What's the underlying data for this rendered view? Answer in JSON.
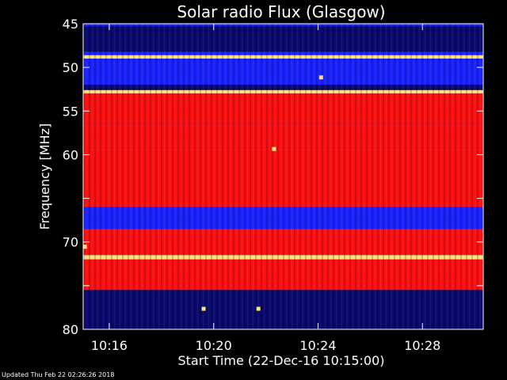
{
  "chart_data": {
    "type": "heatmap",
    "title": "Solar radio Flux (Glasgow)",
    "xlabel": "Start Time (22-Dec-16 10:15:00)",
    "ylabel": "Frequency [MHz]",
    "x_start_minutes": 0,
    "x_end_minutes": 15.33,
    "x_ticks": [
      {
        "label": "10:16",
        "minutes": 1
      },
      {
        "label": "10:20",
        "minutes": 5
      },
      {
        "label": "10:24",
        "minutes": 9
      },
      {
        "label": "10:28",
        "minutes": 13
      }
    ],
    "ylim": [
      45,
      80
    ],
    "y_ticks": [
      45,
      50,
      55,
      60,
      65,
      70,
      75,
      80
    ],
    "y_tick_labels": [
      "45",
      "50",
      "55",
      "60",
      "",
      "70",
      "",
      "80"
    ],
    "colors": {
      "low": "#0a0a6e",
      "mid": "#1a22ff",
      "high": "#ff1010",
      "peak": "#ffe080"
    },
    "bands": [
      {
        "from": 45.0,
        "to": 45.3,
        "level": "mid"
      },
      {
        "from": 45.3,
        "to": 48.2,
        "level": "low"
      },
      {
        "from": 48.2,
        "to": 48.6,
        "level": "mid"
      },
      {
        "from": 48.6,
        "to": 49.0,
        "level": "peak"
      },
      {
        "from": 49.0,
        "to": 52.0,
        "level": "mid"
      },
      {
        "from": 52.0,
        "to": 52.6,
        "level": "low"
      },
      {
        "from": 52.6,
        "to": 53.0,
        "level": "peak"
      },
      {
        "from": 53.0,
        "to": 56.5,
        "level": "high"
      },
      {
        "from": 56.5,
        "to": 59.2,
        "level": "high"
      },
      {
        "from": 59.2,
        "to": 61.5,
        "level": "high"
      },
      {
        "from": 61.5,
        "to": 66.0,
        "level": "high"
      },
      {
        "from": 66.0,
        "to": 68.5,
        "level": "mid"
      },
      {
        "from": 68.5,
        "to": 71.5,
        "level": "high"
      },
      {
        "from": 71.5,
        "to": 72.0,
        "level": "peak"
      },
      {
        "from": 72.0,
        "to": 75.5,
        "level": "high"
      },
      {
        "from": 75.5,
        "to": 80.0,
        "level": "low"
      }
    ],
    "events": [
      {
        "minute": 9.1,
        "frequency": 51.1
      },
      {
        "minute": 7.3,
        "frequency": 59.3
      },
      {
        "minute": 0.05,
        "frequency": 70.5
      },
      {
        "minute": 6.7,
        "frequency": 77.6
      },
      {
        "minute": 4.6,
        "frequency": 77.6
      }
    ]
  },
  "footer": "Updated Thu Feb 22 02:26:26 2018"
}
